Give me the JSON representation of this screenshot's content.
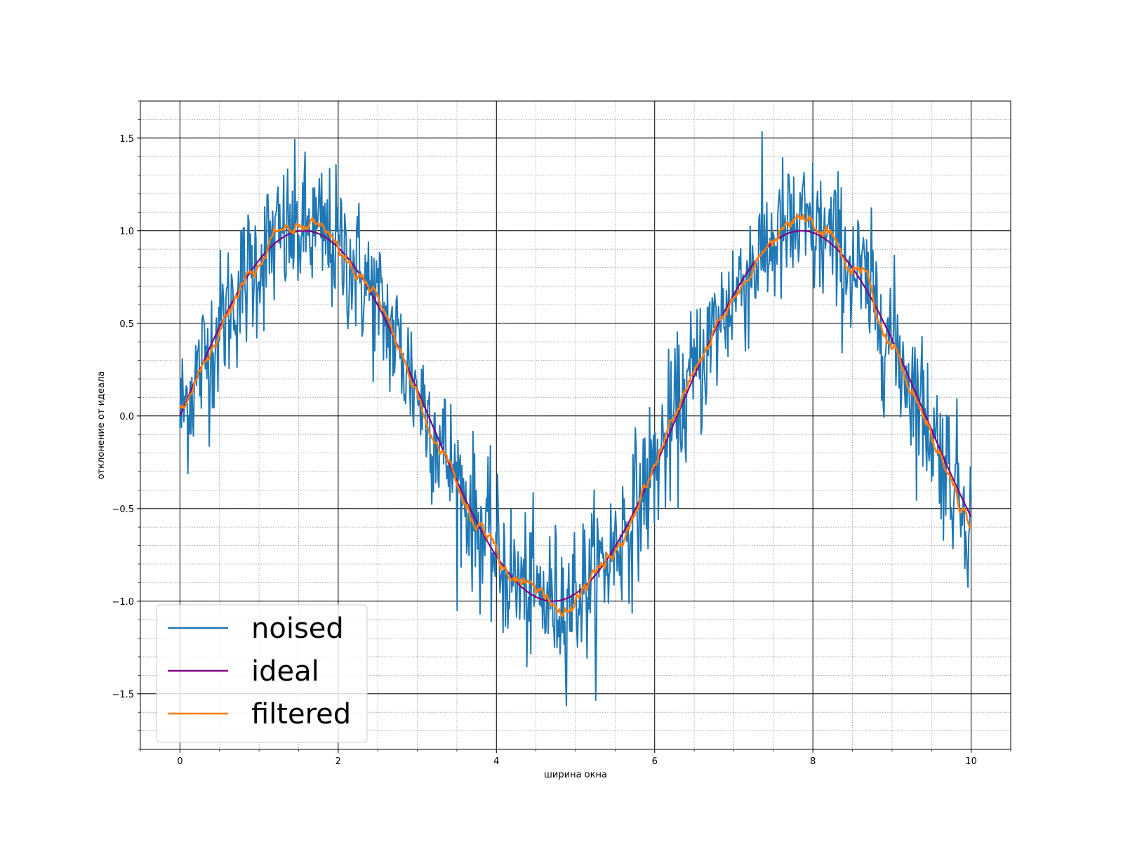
{
  "chart_data": {
    "type": "line",
    "title": "",
    "xlabel": "ширина окна",
    "ylabel": "отклонение от идеала",
    "xlim": [
      -0.5,
      10.5
    ],
    "ylim": [
      -1.8,
      1.7
    ],
    "x_ticks": [
      0,
      2,
      4,
      6,
      8,
      10
    ],
    "x_tick_labels": [
      "0",
      "2",
      "4",
      "6",
      "8",
      "10"
    ],
    "y_ticks": [
      -1.5,
      -1.0,
      -0.5,
      0.0,
      0.5,
      1.0,
      1.5
    ],
    "y_tick_labels": [
      "−1.5",
      "−1.0",
      "−0.5",
      "0.0",
      "0.5",
      "1.0",
      "1.5"
    ],
    "x_minor_step": 0.5,
    "y_minor_step": 0.1,
    "grid": {
      "major": true,
      "minor": true
    },
    "legend": {
      "placement": "lower-left"
    },
    "series": [
      {
        "name": "noised",
        "color": "#1f77b4",
        "description_of_data": "ideal sine plus random noise, 1000 samples",
        "x_range": [
          0,
          10
        ],
        "samples": 1000,
        "noise_amplitude": 0.2
      },
      {
        "name": "ideal",
        "color": "#800080",
        "function": "sin(x)",
        "x_range": [
          0,
          10
        ]
      },
      {
        "name": "filtered",
        "color": "#ff7f0e",
        "description_of_data": "moving-average filtered noisy signal",
        "x_range": [
          0,
          10
        ]
      }
    ]
  }
}
